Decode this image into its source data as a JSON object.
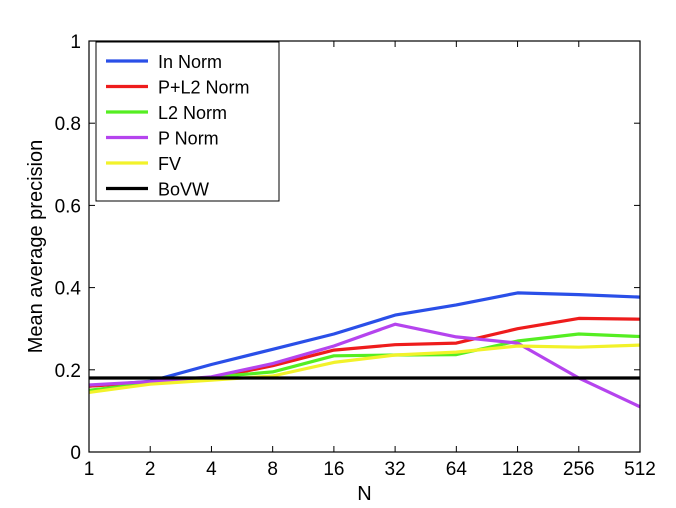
{
  "chart_data": {
    "type": "line",
    "title": "",
    "xlabel": "N",
    "ylabel": "Mean average precision",
    "xscale": "log2",
    "x": [
      1,
      2,
      4,
      8,
      16,
      32,
      64,
      128,
      256,
      512
    ],
    "xticks": [
      "1",
      "2",
      "4",
      "8",
      "16",
      "32",
      "64",
      "128",
      "256",
      "512"
    ],
    "ylim": [
      0,
      1
    ],
    "yticks": [
      "0",
      "0.2",
      "0.4",
      "0.6",
      "0.8",
      "1"
    ],
    "yticks_values": [
      0,
      0.2,
      0.4,
      0.6,
      0.8,
      1
    ],
    "grid": false,
    "legend_position": "top-left",
    "series": [
      {
        "name": "In Norm",
        "color": "#2a4fe8",
        "values": [
          0.16,
          0.172,
          0.213,
          0.25,
          0.287,
          0.333,
          0.358,
          0.387,
          0.383,
          0.377
        ]
      },
      {
        "name": "P+L2 Norm",
        "color": "#ee1c1c",
        "values": [
          0.16,
          0.17,
          0.18,
          0.21,
          0.248,
          0.261,
          0.265,
          0.3,
          0.325,
          0.323
        ]
      },
      {
        "name": "L2 Norm",
        "color": "#55ee22",
        "values": [
          0.15,
          0.168,
          0.182,
          0.195,
          0.234,
          0.236,
          0.237,
          0.27,
          0.287,
          0.281
        ]
      },
      {
        "name": "P Norm",
        "color": "#b544ee",
        "values": [
          0.163,
          0.171,
          0.183,
          0.215,
          0.258,
          0.311,
          0.28,
          0.265,
          0.18,
          0.11
        ]
      },
      {
        "name": "FV",
        "color": "#f2f22a",
        "values": [
          0.145,
          0.165,
          0.175,
          0.185,
          0.218,
          0.236,
          0.243,
          0.258,
          0.255,
          0.26
        ]
      },
      {
        "name": "BoVW",
        "color": "#000000",
        "values": [
          0.18,
          0.18,
          0.18,
          0.18,
          0.18,
          0.18,
          0.18,
          0.18,
          0.18,
          0.18
        ]
      }
    ]
  }
}
